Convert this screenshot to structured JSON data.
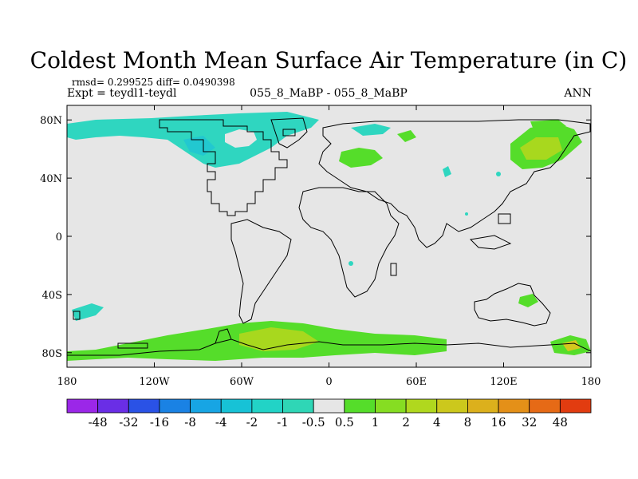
{
  "title": "Coldest Month Mean Surface Air Temperature (in C)",
  "stats": "rmsd= 0.299525 diff= 0.0490398",
  "experiment": "Expt = teydl1-teydl",
  "comparison": "055_8_MaBP - 055_8_MaBP",
  "season": "ANN",
  "colors": {
    "background": "#e6e6e6",
    "coastline": "#000000",
    "cyan": "#2fd6c0",
    "light_green": "#55dd2a",
    "yellow_green": "#a8d81e",
    "yellow": "#d4c81e"
  },
  "chart_data": {
    "type": "heatmap",
    "projection": "cylindrical-equidistant",
    "lon_range": [
      -180,
      180
    ],
    "lat_range": [
      -90,
      90
    ],
    "x_ticks": [
      {
        "lon": -180,
        "label": "180"
      },
      {
        "lon": -120,
        "label": "120W"
      },
      {
        "lon": -60,
        "label": "60W"
      },
      {
        "lon": 0,
        "label": "0"
      },
      {
        "lon": 60,
        "label": "60E"
      },
      {
        "lon": 120,
        "label": "120E"
      },
      {
        "lon": 180,
        "label": "180"
      }
    ],
    "y_ticks": [
      {
        "lat": 80,
        "label": "80N"
      },
      {
        "lat": 40,
        "label": "40N"
      },
      {
        "lat": 0,
        "label": "0"
      },
      {
        "lat": -40,
        "label": "40S"
      },
      {
        "lat": -80,
        "label": "80S"
      }
    ],
    "colorbar": {
      "colors": [
        "#9b27e8",
        "#6a2ee6",
        "#2a52e6",
        "#1a82e4",
        "#17a5e4",
        "#17c2d6",
        "#22d3c6",
        "#2fd6b6",
        "#e6e6e6",
        "#55dd2a",
        "#86dd22",
        "#b0d81e",
        "#ccc81c",
        "#dcb01c",
        "#e49018",
        "#e66a16",
        "#e23c10"
      ],
      "labels": [
        "-48",
        "-32",
        "-16",
        "-8",
        "-4",
        "-2",
        "-1",
        "-0.5",
        "0.5",
        "1",
        "2",
        "4",
        "8",
        "16",
        "32",
        "48"
      ]
    }
  }
}
